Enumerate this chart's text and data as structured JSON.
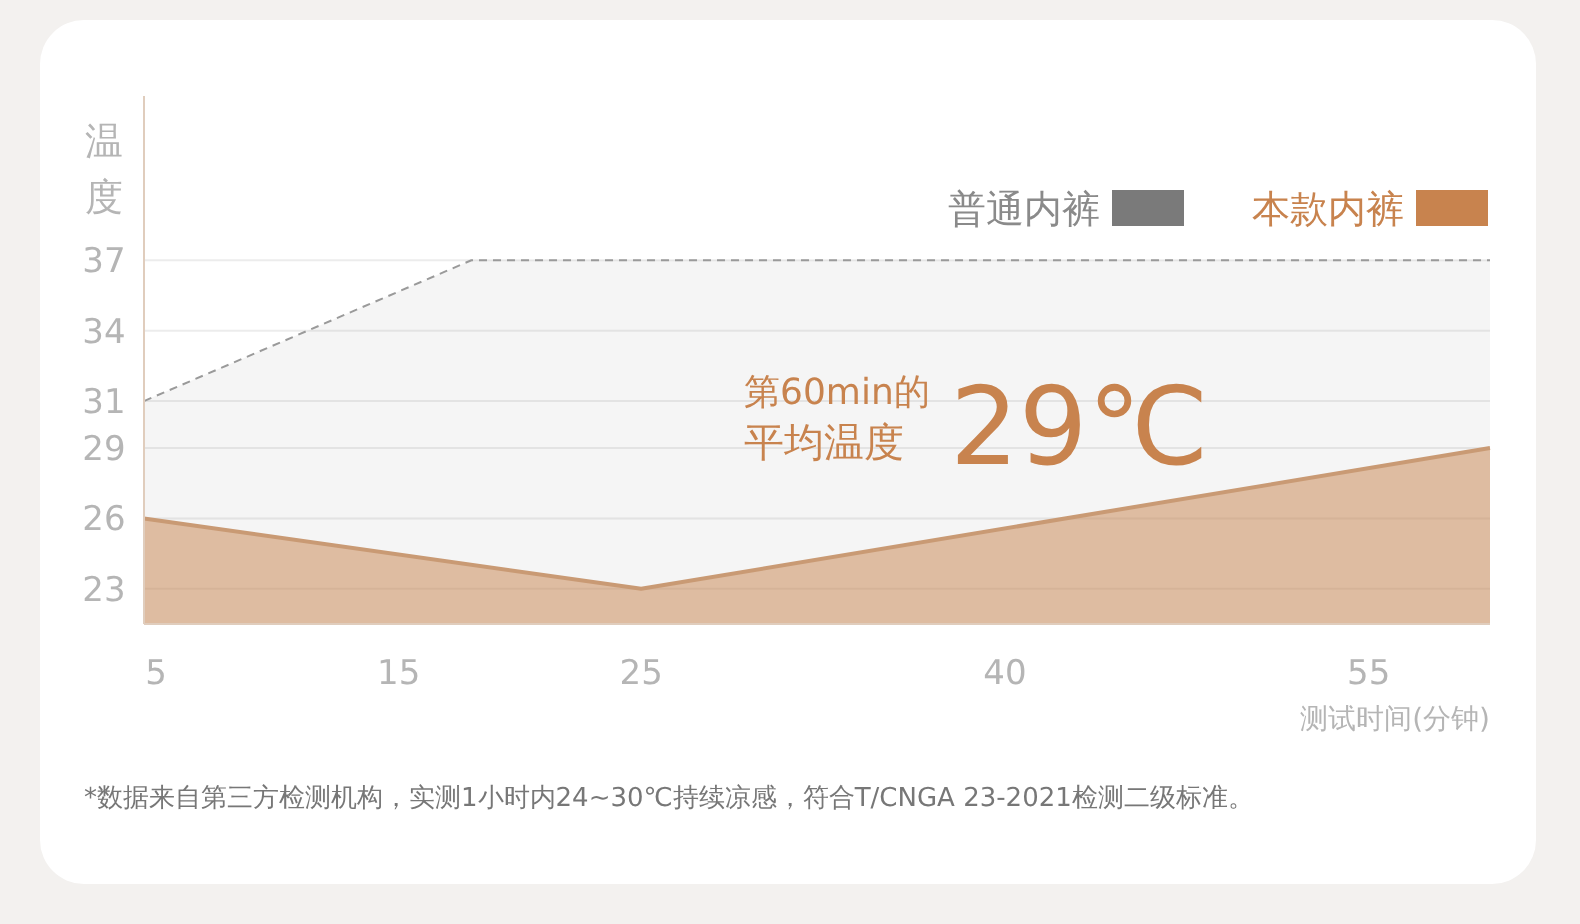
{
  "chart_data": {
    "type": "area",
    "ylabel": "温度",
    "xlabel": "测试时间(分钟)",
    "xlim": [
      4.5,
      60
    ],
    "xticks": [
      5,
      15,
      25,
      40,
      55
    ],
    "ylim": [
      21.5,
      44
    ],
    "yticks": [
      23,
      26,
      29,
      31,
      34,
      37
    ],
    "grid": "y",
    "legend": "top right",
    "series": [
      {
        "name": "普通内裤",
        "color": "#7a7a7a",
        "x": [
          4.5,
          18,
          60
        ],
        "values": [
          31,
          37,
          37
        ],
        "line_style": "dashed"
      },
      {
        "name": "本款内裤",
        "color": "#c8834e",
        "x": [
          4.5,
          25,
          60
        ],
        "values": [
          26,
          23,
          29
        ],
        "line_style": "solid"
      }
    ],
    "annotations": [
      "第60min的",
      "平均温度",
      "29℃",
      "*数据来自第三方检测机构，实测1小时内24~30℃持续凉感，符合T/CNGA 23-2021检测二级标准。"
    ]
  }
}
